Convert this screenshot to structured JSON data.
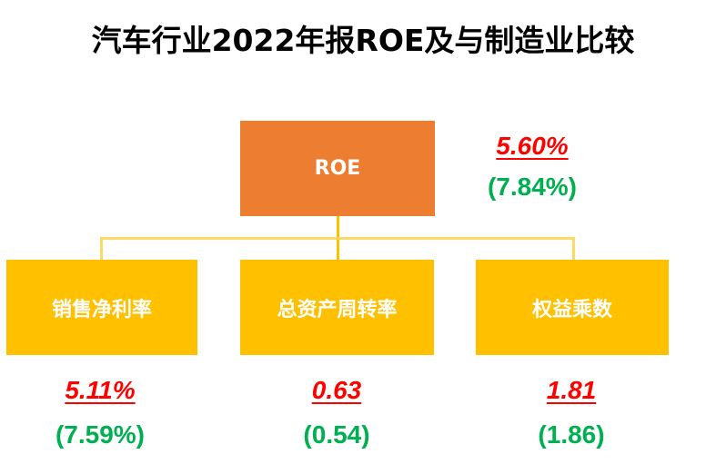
{
  "title": "汽车行业2022年报ROE及与制造业比较",
  "colors": {
    "roe_box": "#ED7D31",
    "child_box": "#FFC000",
    "connector": "#FFD966",
    "current_value": "#FF0000",
    "comparison_value": "#00B050"
  },
  "root": {
    "label": "ROE",
    "current": "5.60%",
    "comparison": "(7.84%)"
  },
  "children": [
    {
      "label": "销售净利率",
      "current": "5.11%",
      "comparison": "(7.59%)"
    },
    {
      "label": "总资产周转率",
      "current": "0.63",
      "comparison": "(0.54)"
    },
    {
      "label": "权益乘数",
      "current": "1.81",
      "comparison": "(1.86)"
    }
  ]
}
